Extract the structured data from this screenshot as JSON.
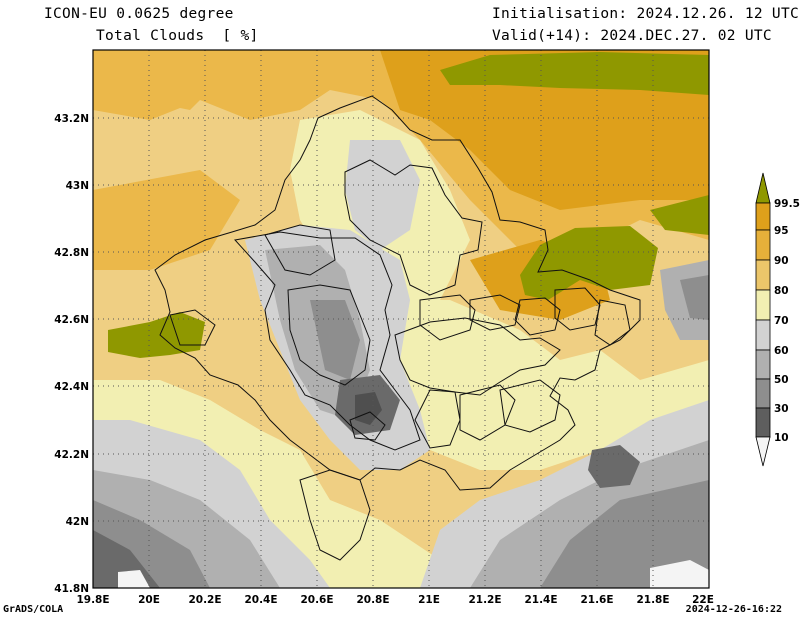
{
  "header": {
    "model": "ICON-EU 0.0625 degree",
    "variable": "Total Clouds  [ %]",
    "init": "Initialisation: 2024.12.26. 12 UTC",
    "valid": "Valid(+14): 2024.DEC.27. 02 UTC"
  },
  "footer": {
    "left": "GrADS/COLA",
    "right": "2024-12-26-16:22"
  },
  "map": {
    "lon_labels": [
      "19.8E",
      "20E",
      "20.2E",
      "20.4E",
      "20.6E",
      "20.8E",
      "21E",
      "21.2E",
      "21.4E",
      "21.6E",
      "21.8E",
      "22E"
    ],
    "lat_labels": [
      "43.2N",
      "43N",
      "42.8N",
      "42.6N",
      "42.4N",
      "42.2N",
      "42N",
      "41.8N"
    ]
  },
  "legend": {
    "labels": [
      "99.5",
      "95",
      "90",
      "80",
      "70",
      "60",
      "50",
      "30",
      "10"
    ],
    "colors": [
      "#8f9800",
      "#dea01b",
      "#ebb84a",
      "#efcf83",
      "#f2efb2",
      "#d2d2d2",
      "#b0b0b0",
      "#8e8e8e",
      "#6a6a6a",
      "#4f4f4f",
      "#f4f4f4"
    ]
  }
}
